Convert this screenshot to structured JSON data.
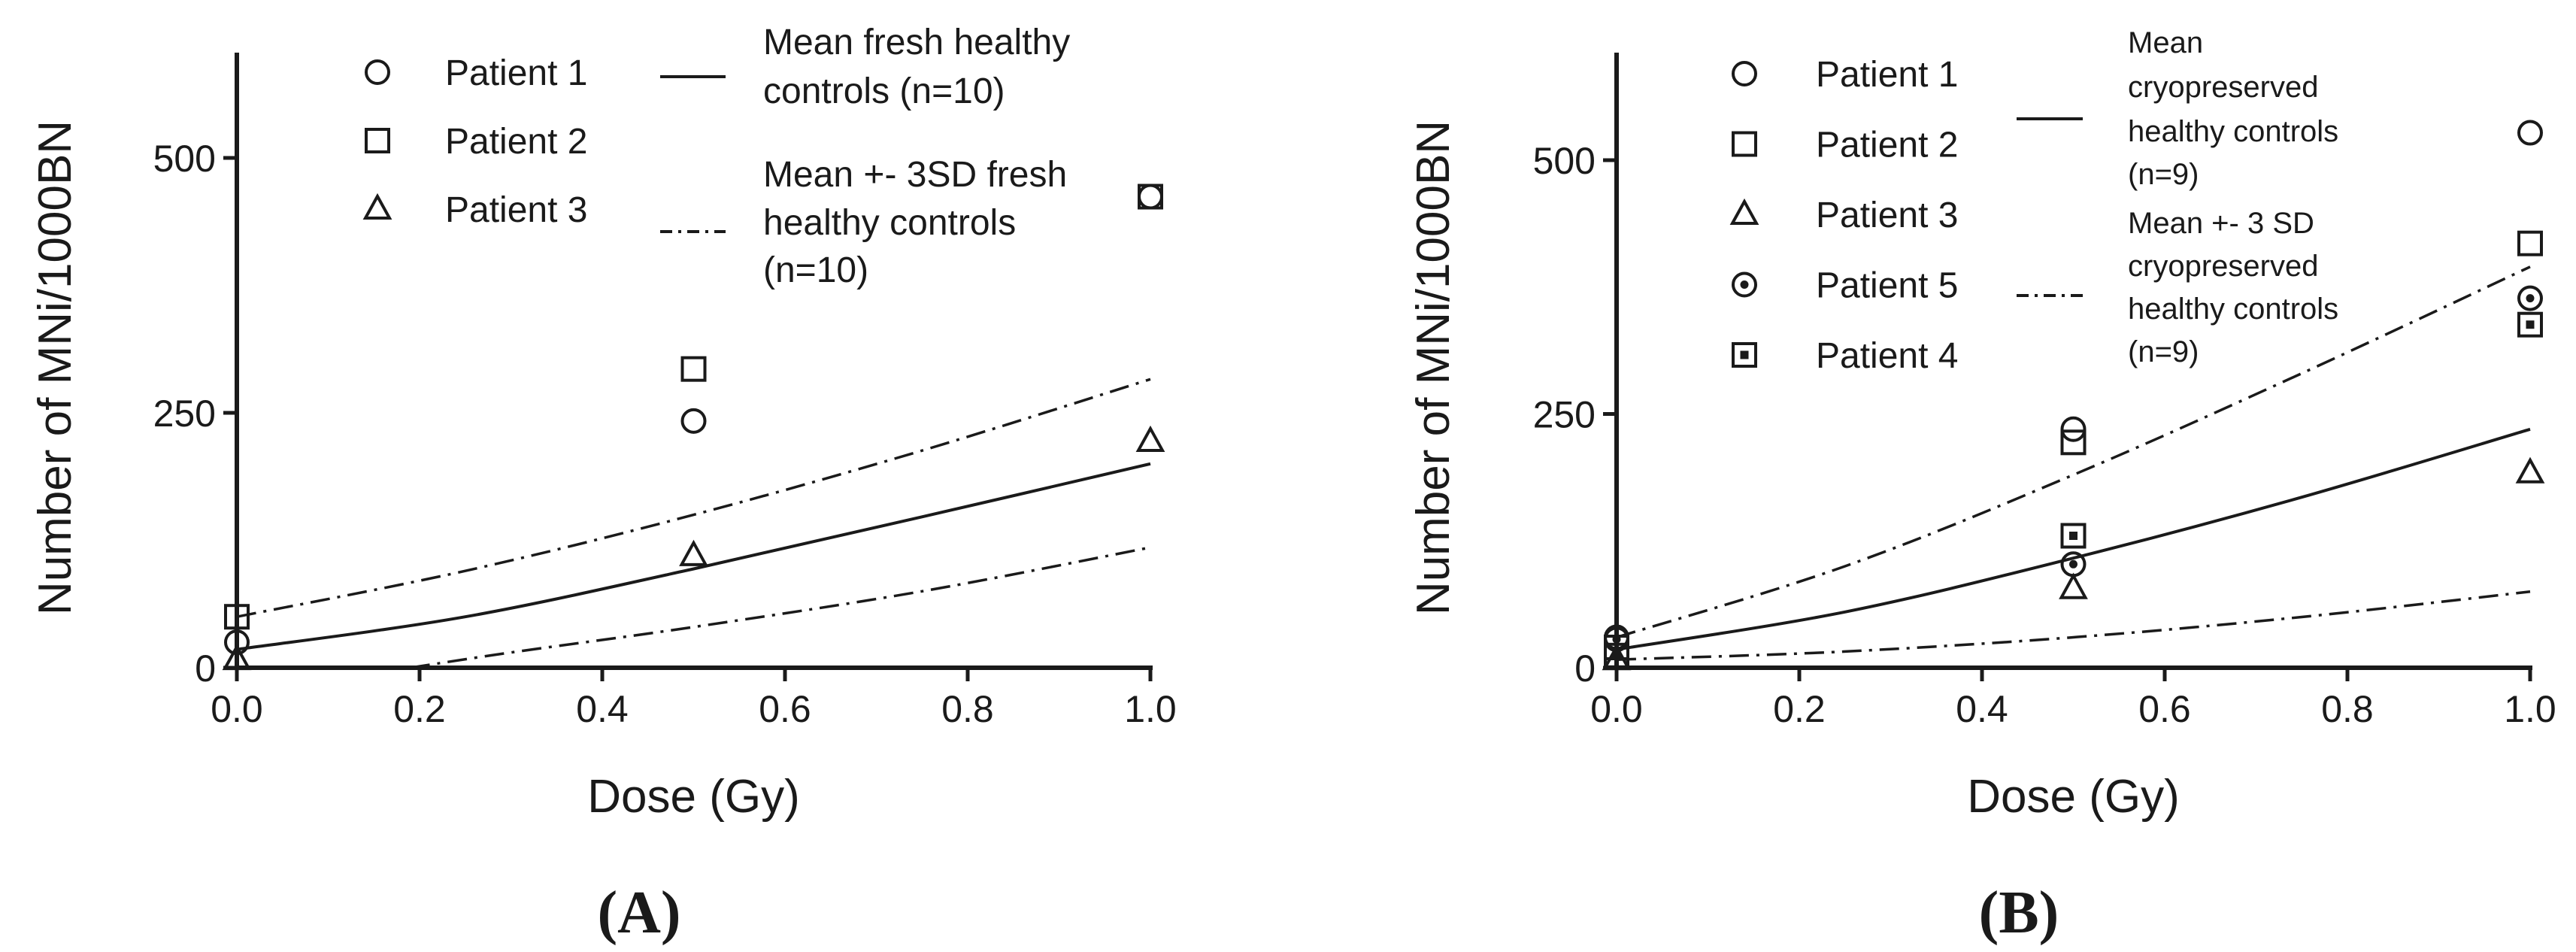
{
  "chart_data": [
    {
      "type": "scatter",
      "panel_label": "(A)",
      "xlabel": "Dose (Gy)",
      "ylabel": "Number of MNi/1000BN",
      "xlim": [
        0,
        1
      ],
      "ylim": [
        0,
        600
      ],
      "x_ticks": [
        "0.0",
        "0.2",
        "0.4",
        "0.6",
        "0.8",
        "1.0"
      ],
      "y_ticks": [
        "0",
        "250",
        "500"
      ],
      "series": [
        {
          "name": "Patient 1",
          "marker": "circle",
          "x": [
            0,
            0.5,
            1.0
          ],
          "y": [
            25,
            242,
            462
          ]
        },
        {
          "name": "Patient 2",
          "marker": "square",
          "x": [
            0,
            0.5,
            1.0
          ],
          "y": [
            50,
            293,
            462
          ]
        },
        {
          "name": "Patient 3",
          "marker": "triangle",
          "x": [
            0,
            0.5,
            1.0
          ],
          "y": [
            8,
            110,
            222
          ]
        }
      ],
      "curves": [
        {
          "name": "Mean fresh healthy controls (n=10)",
          "style": "solid",
          "x": [
            0,
            0.25,
            0.5,
            0.75,
            1.0
          ],
          "y": [
            18,
            50,
            97,
            148,
            200
          ]
        },
        {
          "name": "Mean +- 3SD fresh healthy controls (n=10)",
          "style": "dash-dot",
          "x": [
            0,
            0.25,
            0.5,
            0.75,
            1.0
          ],
          "y": [
            50,
            95,
            150,
            213,
            283
          ]
        },
        {
          "name": "Mean +- 3SD fresh healthy controls (n=10)",
          "style": "dash-dot",
          "x": [
            0.19,
            0.3,
            0.5,
            0.75,
            1.0
          ],
          "y": [
            0,
            15,
            40,
            75,
            118
          ]
        }
      ],
      "legend_points": [
        {
          "label": "Patient 1",
          "marker": "circle"
        },
        {
          "label": "Patient 2",
          "marker": "square"
        },
        {
          "label": "Patient 3",
          "marker": "triangle"
        }
      ],
      "legend_lines": [
        {
          "lines": [
            "Mean fresh healthy",
            "controls (n=10)"
          ],
          "style": "solid"
        },
        {
          "lines": [
            "Mean +- 3SD fresh",
            "healthy controls",
            "(n=10)"
          ],
          "style": "dash-dot"
        }
      ]
    },
    {
      "type": "scatter",
      "panel_label": "(B)",
      "xlabel": "Dose (Gy)",
      "ylabel": "Number of MNi/1000BN",
      "xlim": [
        0,
        1
      ],
      "ylim": [
        0,
        600
      ],
      "x_ticks": [
        "0.0",
        "0.2",
        "0.4",
        "0.6",
        "0.8",
        "1.0"
      ],
      "y_ticks": [
        "0",
        "250",
        "500"
      ],
      "series": [
        {
          "name": "Patient 1",
          "marker": "circle",
          "x": [
            0,
            0.5,
            1.0
          ],
          "y": [
            30,
            235,
            527
          ]
        },
        {
          "name": "Patient 2",
          "marker": "square",
          "x": [
            0,
            0.5,
            1.0
          ],
          "y": [
            20,
            222,
            418
          ]
        },
        {
          "name": "Patient 3",
          "marker": "triangle",
          "x": [
            0,
            0.5,
            1.0
          ],
          "y": [
            8,
            78,
            192
          ]
        },
        {
          "name": "Patient 5",
          "marker": "circle-dot",
          "x": [
            0,
            0.5,
            1.0
          ],
          "y": [
            28,
            102,
            364
          ]
        },
        {
          "name": "Patient 4",
          "marker": "square-dot",
          "x": [
            0,
            0.5,
            1.0
          ],
          "y": [
            12,
            130,
            338
          ]
        }
      ],
      "curves": [
        {
          "name": "Mean cryopreserved healthy controls (n=9)",
          "style": "solid",
          "x": [
            0,
            0.25,
            0.5,
            0.75,
            1.0
          ],
          "y": [
            18,
            55,
            108,
            168,
            235
          ]
        },
        {
          "name": "Mean +- 3 SD cryopreserved healthy controls (n=9)",
          "style": "dash-dot",
          "x": [
            0,
            0.25,
            0.5,
            0.75,
            1.0
          ],
          "y": [
            30,
            100,
            190,
            290,
            395
          ]
        },
        {
          "name": "Mean +- 3 SD cryopreserved healthy controls (n=9)",
          "style": "dash-dot",
          "x": [
            0,
            0.25,
            0.5,
            0.75,
            1.0
          ],
          "y": [
            8,
            16,
            30,
            50,
            75
          ]
        }
      ],
      "legend_points": [
        {
          "label": "Patient 1",
          "marker": "circle"
        },
        {
          "label": "Patient 2",
          "marker": "square"
        },
        {
          "label": "Patient 3",
          "marker": "triangle"
        },
        {
          "label": "Patient 5",
          "marker": "circle-dot"
        },
        {
          "label": "Patient 4",
          "marker": "square-dot"
        }
      ],
      "legend_lines": [
        {
          "lines": [
            "Mean",
            "cryopreserved",
            "healthy controls",
            "(n=9)"
          ],
          "style": "solid"
        },
        {
          "lines": [
            "Mean +- 3 SD",
            "cryopreserved",
            "healthy controls",
            "(n=9)"
          ],
          "style": "dash-dot"
        }
      ]
    }
  ]
}
